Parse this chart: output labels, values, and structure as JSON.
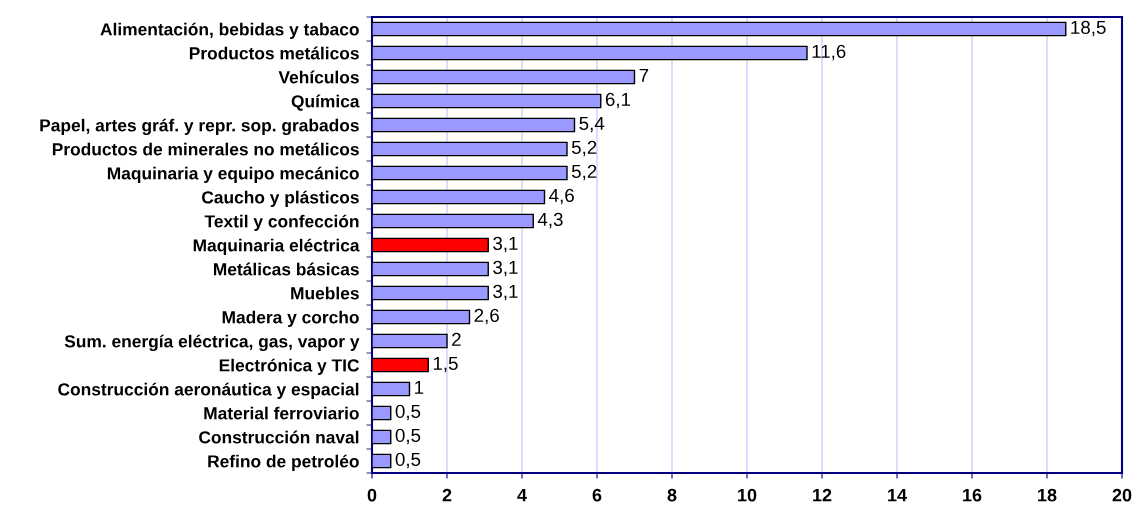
{
  "chart_data": {
    "type": "bar",
    "orientation": "horizontal",
    "categories": [
      "Alimentación, bebidas y tabaco",
      "Productos metálicos",
      "Vehículos",
      "Química",
      "Papel, artes gráf. y repr. sop. grabados",
      "Productos de minerales no metálicos",
      "Maquinaria y equipo mecánico",
      "Caucho y plásticos",
      "Textil y confección",
      "Maquinaria eléctrica",
      "Metálicas básicas",
      "Muebles",
      "Madera y corcho",
      "Sum. energía eléctrica, gas, vapor y",
      "Electrónica y TIC",
      "Construcción aeronáutica y espacial",
      "Material ferroviario",
      "Construcción naval",
      "Refino de petroléo"
    ],
    "values": [
      18.5,
      11.6,
      7,
      6.1,
      5.4,
      5.2,
      5.2,
      4.6,
      4.3,
      3.1,
      3.1,
      3.1,
      2.6,
      2,
      1.5,
      1,
      0.5,
      0.5,
      0.5
    ],
    "value_labels": [
      "18,5",
      "11,6",
      "7",
      "6,1",
      "5,4",
      "5,2",
      "5,2",
      "4,6",
      "4,3",
      "3,1",
      "3,1",
      "3,1",
      "2,6",
      "2",
      "1,5",
      "1",
      "0,5",
      "0,5",
      "0,5"
    ],
    "colors": [
      "#9999ff",
      "#9999ff",
      "#9999ff",
      "#9999ff",
      "#9999ff",
      "#9999ff",
      "#9999ff",
      "#9999ff",
      "#9999ff",
      "#ff0000",
      "#9999ff",
      "#9999ff",
      "#9999ff",
      "#9999ff",
      "#ff0000",
      "#9999ff",
      "#9999ff",
      "#9999ff",
      "#9999ff"
    ],
    "xlim": [
      0,
      20
    ],
    "xticks": [
      0,
      2,
      4,
      6,
      8,
      10,
      12,
      14,
      16,
      18,
      20
    ],
    "grid": "x",
    "legend": false
  }
}
